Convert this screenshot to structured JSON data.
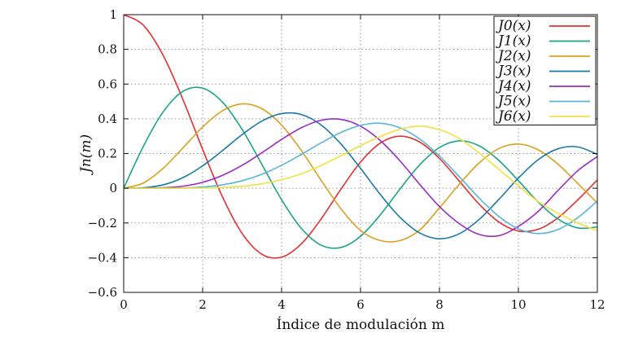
{
  "chart_data": {
    "type": "line",
    "title": "",
    "xlabel": "Índice de modulación m",
    "ylabel": "Jn(m)",
    "xlim": [
      0,
      12
    ],
    "ylim": [
      -0.6,
      1
    ],
    "x_ticks": [
      0,
      2,
      4,
      6,
      8,
      10,
      12
    ],
    "y_ticks": [
      -0.6,
      -0.4,
      -0.2,
      0,
      0.2,
      0.4,
      0.6,
      0.8,
      1
    ],
    "x_tick_labels": [
      "0",
      "2",
      "4",
      "6",
      "8",
      "10",
      "12"
    ],
    "y_tick_labels": [
      "−0.6",
      "−0.4",
      "−0.2",
      "0",
      "0.2",
      "0.4",
      "0.6",
      "0.8",
      "1"
    ],
    "grid": true,
    "legend_position": "top-right",
    "x_sample_step": 0.5,
    "series": [
      {
        "name": "J0(x)",
        "color": "#e03030",
        "values": [
          1.0,
          0.9385,
          0.7652,
          0.5118,
          0.2239,
          -0.0484,
          -0.2601,
          -0.3801,
          -0.3971,
          -0.3205,
          -0.1776,
          -0.0068,
          0.1506,
          0.2601,
          0.3001,
          0.2663,
          0.1717,
          0.0419,
          -0.0903,
          -0.1939,
          -0.2459,
          -0.2366,
          -0.1712,
          -0.0677,
          0.0477
        ]
      },
      {
        "name": "J1(x)",
        "color": "#1aa487",
        "values": [
          0.0,
          0.2423,
          0.4401,
          0.5579,
          0.5767,
          0.4971,
          0.3391,
          0.1374,
          -0.066,
          -0.2311,
          -0.3276,
          -0.3414,
          -0.2767,
          -0.1538,
          -0.0047,
          0.1352,
          0.2346,
          0.2731,
          0.2453,
          0.1613,
          0.0435,
          -0.0789,
          -0.1768,
          -0.2284,
          -0.2234
        ]
      },
      {
        "name": "J2(x)",
        "color": "#dba020",
        "values": [
          0.0,
          0.0306,
          0.1149,
          0.2321,
          0.3528,
          0.4461,
          0.4861,
          0.4586,
          0.3641,
          0.2178,
          0.0466,
          -0.1173,
          -0.2429,
          -0.3014,
          -0.3014,
          -0.2404,
          -0.113,
          0.0223,
          0.1448,
          0.2279,
          0.2546,
          0.2216,
          0.139,
          0.0286,
          -0.0849
        ]
      },
      {
        "name": "J3(x)",
        "color": "#1a78a8",
        "values": [
          0.0,
          0.0026,
          0.0196,
          0.061,
          0.1289,
          0.2166,
          0.3091,
          0.3868,
          0.4302,
          0.4247,
          0.3648,
          0.2561,
          0.1148,
          -0.0353,
          -0.1676,
          -0.2578,
          -0.2911,
          -0.2626,
          -0.1809,
          -0.0656,
          0.0584,
          0.1644,
          0.2273,
          0.2381,
          0.1951
        ]
      },
      {
        "name": "J4(x)",
        "color": "#9a2bc0",
        "values": [
          0.0,
          0.0002,
          0.0025,
          0.0118,
          0.034,
          0.0738,
          0.132,
          0.2044,
          0.2811,
          0.3484,
          0.3912,
          0.3967,
          0.3576,
          0.275,
          0.1578,
          0.0223,
          -0.1054,
          -0.2034,
          -0.2655,
          -0.2737,
          -0.2196,
          -0.1337,
          -0.014,
          0.1,
          0.1825
        ]
      },
      {
        "name": "J5(x)",
        "color": "#5ab4d8",
        "values": [
          0.0,
          0.0,
          0.0002,
          0.0018,
          0.007,
          0.0195,
          0.043,
          0.0804,
          0.1321,
          0.1947,
          0.2611,
          0.3209,
          0.3621,
          0.3746,
          0.3479,
          0.2835,
          0.1858,
          0.0671,
          -0.055,
          -0.1613,
          -0.2341,
          -0.2611,
          -0.2383,
          -0.1702,
          -0.0735
        ]
      },
      {
        "name": "J6(x)",
        "color": "#f0e040",
        "values": [
          0.0,
          0.0,
          0.0,
          0.0002,
          0.0012,
          0.0042,
          0.0114,
          0.0256,
          0.0491,
          0.0832,
          0.131,
          0.1871,
          0.2458,
          0.298,
          0.3392,
          0.3576,
          0.3376,
          0.2867,
          0.2043,
          0.1101,
          0.0145,
          -0.0767,
          -0.144,
          -0.1992,
          -0.2437
        ]
      }
    ]
  }
}
